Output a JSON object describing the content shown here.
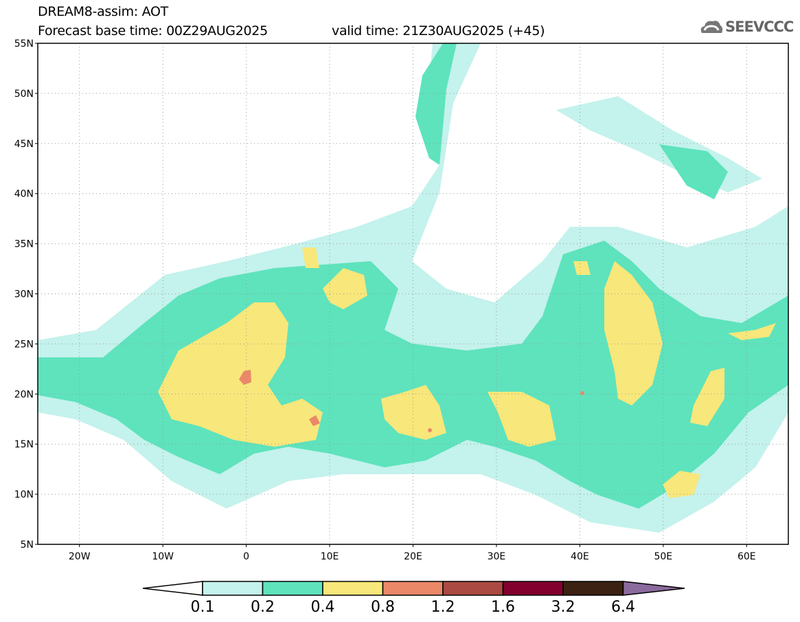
{
  "header": {
    "title": "DREAM8-assim: AOT",
    "base_time": "Forecast base time: 00Z29AUG2025",
    "valid_time": "valid time: 21Z30AUG2025 (+45)"
  },
  "logo": {
    "text": "SEEVCCC"
  },
  "map": {
    "lat_labels": [
      "55N",
      "50N",
      "45N",
      "40N",
      "35N",
      "30N",
      "25N",
      "20N",
      "15N",
      "10N",
      "5N"
    ],
    "lon_labels": [
      "20W",
      "10W",
      "0",
      "10E",
      "20E",
      "30E",
      "40E",
      "50E",
      "60E"
    ],
    "lon_range": [
      -25,
      65
    ],
    "lat_range": [
      5,
      55
    ]
  },
  "legend": {
    "labels": [
      "0.1",
      "0.2",
      "0.4",
      "0.8",
      "1.2",
      "1.6",
      "3.2",
      "6.4"
    ],
    "colors": [
      "#ffffff",
      "#c4f2ec",
      "#5ee3bd",
      "#f8e77a",
      "#ea8868",
      "#ab4a42",
      "#83002e",
      "#3b2212",
      "#8b6a9e"
    ]
  }
}
